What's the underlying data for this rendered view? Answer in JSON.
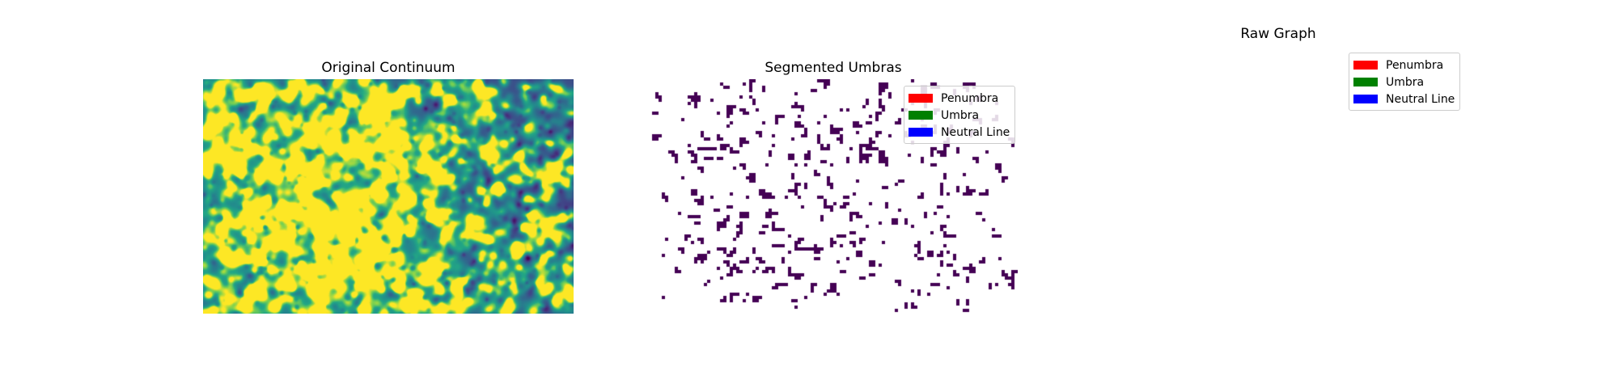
{
  "figure": {
    "panels": [
      {
        "title": "Original Continuum"
      },
      {
        "title": "Segmented Umbras"
      },
      {
        "title": "Raw Graph"
      }
    ],
    "legend_items": [
      {
        "label": "Penumbra",
        "color": "#ff0000"
      },
      {
        "label": "Umbra",
        "color": "#008000"
      },
      {
        "label": "Neutral Line",
        "color": "#0000ff"
      }
    ],
    "colormap": "viridis",
    "mask_color": "#440154"
  }
}
